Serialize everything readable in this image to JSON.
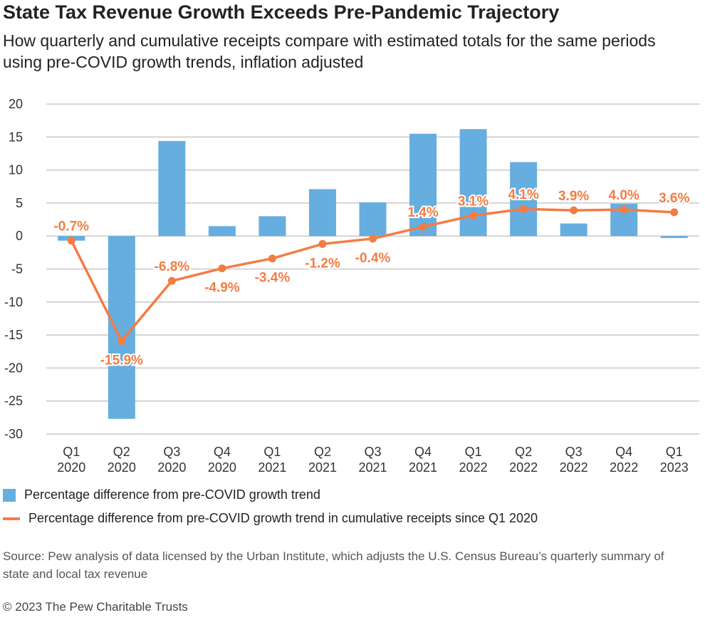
{
  "title": "State Tax Revenue Growth Exceeds Pre-Pandemic Trajectory",
  "subtitle": "How quarterly and cumulative receipts compare with estimated totals for the same periods using pre-COVID growth trends, inflation adjusted",
  "chart_data": {
    "type": "bar+line",
    "categories": [
      [
        "Q1",
        "2020"
      ],
      [
        "Q2",
        "2020"
      ],
      [
        "Q3",
        "2020"
      ],
      [
        "Q4",
        "2020"
      ],
      [
        "Q1",
        "2021"
      ],
      [
        "Q2",
        "2021"
      ],
      [
        "Q3",
        "2021"
      ],
      [
        "Q4",
        "2021"
      ],
      [
        "Q1",
        "2022"
      ],
      [
        "Q2",
        "2022"
      ],
      [
        "Q3",
        "2022"
      ],
      [
        "Q4",
        "2022"
      ],
      [
        "Q1",
        "2023"
      ]
    ],
    "ylim": [
      -30,
      20
    ],
    "yticks": [
      20,
      15,
      10,
      5,
      0,
      -5,
      -10,
      -15,
      -20,
      -25,
      -30
    ],
    "grid": true,
    "legend_position": "bottom",
    "series": [
      {
        "name": "Percentage difference from pre-COVID growth trend",
        "type": "bar",
        "color": "#65aedf",
        "values": [
          -0.7,
          -27.7,
          14.4,
          1.5,
          3.0,
          7.1,
          5.1,
          15.5,
          16.2,
          11.2,
          1.9,
          4.9,
          -0.3
        ]
      },
      {
        "name": "Percentage difference from pre-COVID growth trend in cumulative receipts since Q1 2020",
        "type": "line",
        "color": "#f47c44",
        "values": [
          -0.7,
          -15.9,
          -6.8,
          -4.9,
          -3.4,
          -1.2,
          -0.4,
          1.4,
          3.1,
          4.1,
          3.9,
          4.0,
          3.6
        ],
        "labels": [
          "-0.7%",
          "-15.9%",
          "-6.8%",
          "-4.9%",
          "-3.4%",
          "-1.2%",
          "-0.4%",
          "1.4%",
          "3.1%",
          "4.1%",
          "3.9%",
          "4.0%",
          "3.6%"
        ]
      }
    ]
  },
  "source": "Source: Pew analysis of data licensed by the Urban Institute, which adjusts the U.S. Census Bureau’s quarterly summary of state and local tax revenue",
  "copyright": "© 2023 The Pew Charitable Trusts"
}
